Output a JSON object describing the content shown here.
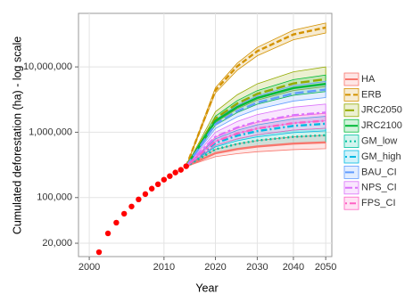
{
  "chart_data": {
    "type": "line",
    "x_label": "Year",
    "y_label": "Cumulated deforestation (ha) - log scale",
    "y_log": true,
    "grid": true,
    "legend": "right",
    "xlim": [
      1999,
      2052
    ],
    "xticks": [
      2000,
      2010,
      2020,
      2030,
      2040,
      2050
    ],
    "ylim": [
      12500,
      66000000
    ],
    "yticks": [
      {
        "value": 20000,
        "label": "20,000"
      },
      {
        "value": 100000,
        "label": "100,000"
      },
      {
        "value": 1000000,
        "label": "1,000,000"
      },
      {
        "value": 10000000,
        "label": "10,000,000"
      }
    ],
    "points": {
      "color": "#ff0000",
      "x": [
        2001,
        2002,
        2003,
        2004,
        2005,
        2006,
        2007,
        2008,
        2009,
        2010,
        2011,
        2012,
        2013,
        2014
      ],
      "values": [
        14600,
        28300,
        41300,
        56600,
        73000,
        93800,
        113000,
        137000,
        160000,
        188000,
        213000,
        242000,
        266000,
        302000
      ]
    },
    "x": [
      2014,
      2020,
      2025,
      2030,
      2040,
      2050
    ],
    "series": [
      {
        "name": "HA",
        "color": "#F8766D",
        "dash": "solid",
        "values": [
          300000,
          478000,
          552000,
          606000,
          671000,
          700000
        ],
        "lower": [
          300000,
          423000,
          470000,
          503000,
          542000,
          560000
        ],
        "upper": [
          300000,
          548000,
          661000,
          747000,
          851000,
          900000
        ]
      },
      {
        "name": "ERB",
        "color": "#D39200",
        "dash": "dashed",
        "values": [
          300000,
          4400000,
          10200000,
          17400000,
          31400000,
          40000000
        ],
        "lower": [
          300000,
          4000000,
          8900000,
          14800000,
          26000000,
          33000000
        ],
        "upper": [
          300000,
          4800000,
          11400000,
          19900000,
          36500000,
          47000000
        ]
      },
      {
        "name": "JRC2050",
        "color": "#93AA00",
        "dash": "longdash",
        "values": [
          300000,
          1630000,
          2750000,
          3860000,
          5580000,
          6500000
        ],
        "lower": [
          300000,
          1410000,
          2280000,
          3100000,
          4350000,
          5000000
        ],
        "upper": [
          300000,
          2060000,
          3750000,
          5510000,
          8400000,
          10000000
        ]
      },
      {
        "name": "JRC2100",
        "color": "#00BA38",
        "dash": "solid",
        "values": [
          300000,
          1490000,
          2430000,
          3350000,
          4750000,
          5500000
        ],
        "lower": [
          300000,
          1280000,
          2000000,
          2680000,
          3680000,
          4200000
        ],
        "upper": [
          300000,
          1760000,
          3050000,
          4340000,
          6380000,
          7500000
        ]
      },
      {
        "name": "GM_low",
        "color": "#00C19F",
        "dash": "dotted",
        "values": [
          300000,
          548000,
          661000,
          747000,
          851000,
          900000
        ],
        "lower": [
          300000,
          478000,
          552000,
          606000,
          671000,
          700000
        ],
        "upper": [
          300000,
          628000,
          790000,
          916000,
          1080000,
          1150000
        ]
      },
      {
        "name": "GM_high",
        "color": "#00B9E3",
        "dash": "dotdash",
        "values": [
          300000,
          686000,
          885000,
          1040000,
          1250000,
          1350000
        ],
        "lower": [
          300000,
          597000,
          740000,
          849000,
          986000,
          1050000
        ],
        "upper": [
          300000,
          791000,
          1070000,
          1300000,
          1600000,
          1750000
        ]
      },
      {
        "name": "BAU_CI",
        "color": "#619CFF",
        "dash": "longdash",
        "values": [
          300000,
          1330000,
          2110000,
          2840000,
          3930000,
          4500000
        ],
        "lower": [
          300000,
          1140000,
          1720000,
          2250000,
          3000000,
          3400000
        ],
        "upper": [
          300000,
          1560000,
          2600000,
          3600000,
          5160000,
          6000000
        ]
      },
      {
        "name": "NPS_CI",
        "color": "#DB72FB",
        "dash": "twodash",
        "values": [
          300000,
          852000,
          1180000,
          1450000,
          1820000,
          2000000
        ],
        "lower": [
          300000,
          726000,
          956000,
          1140000,
          1380000,
          1500000
        ],
        "upper": [
          300000,
          1000000,
          1460000,
          1860000,
          2420000,
          2700000
        ]
      },
      {
        "name": "FPS_CI",
        "color": "#FF61C3",
        "dash": "dotdash",
        "values": [
          300000,
          726000,
          956000,
          1140000,
          1380000,
          1500000
        ],
        "lower": [
          300000,
          628000,
          790000,
          916000,
          1080000,
          1150000
        ],
        "upper": [
          300000,
          840000,
          1150000,
          1420000,
          1780000,
          1950000
        ]
      }
    ]
  }
}
